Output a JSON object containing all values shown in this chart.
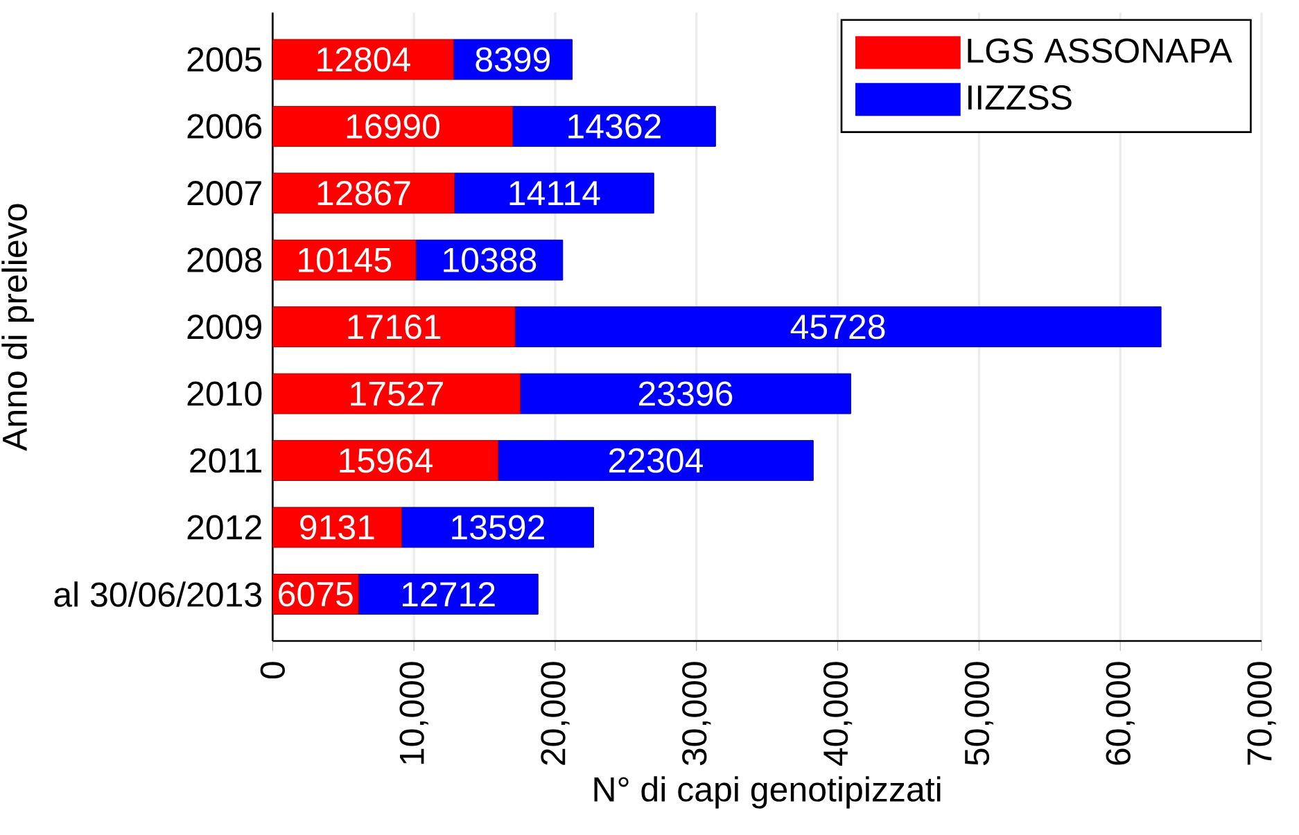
{
  "chart_data": {
    "type": "bar",
    "orientation": "horizontal",
    "stacked": true,
    "data_labels": true,
    "grid": "x",
    "legend": "top right",
    "xlabel": "N° di capi genotipizzati",
    "ylabel": "Anno di prelievo",
    "categories": [
      "2005",
      "2006",
      "2007",
      "2008",
      "2009",
      "2010",
      "2011",
      "2012",
      "al 30/06/2013"
    ],
    "series": [
      {
        "name": "LGS ASSONAPA",
        "color": "#ff0000",
        "values": [
          12804,
          16990,
          12867,
          10145,
          17161,
          17527,
          15964,
          9131,
          6075
        ]
      },
      {
        "name": "IIZZSS",
        "color": "#0000ff",
        "values": [
          8399,
          14362,
          14114,
          10388,
          45728,
          23396,
          22304,
          13592,
          12712
        ]
      }
    ],
    "xlim": [
      0,
      70000
    ],
    "xticks": [
      0,
      {
        "value": 10000,
        "label": "10,000"
      },
      {
        "value": 20000,
        "label": "20,000"
      },
      {
        "value": 30000,
        "label": "30,000"
      },
      {
        "value": 40000,
        "label": "40,000"
      },
      {
        "value": 50000,
        "label": "50,000"
      },
      {
        "value": 60000,
        "label": "60,000"
      },
      {
        "value": 70000,
        "label": "70,000"
      }
    ]
  }
}
